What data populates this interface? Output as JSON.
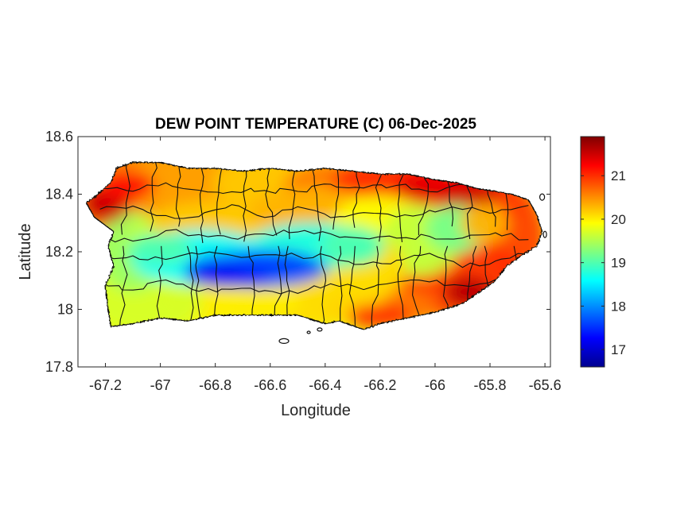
{
  "chart_data": {
    "type": "heatmap",
    "title": "DEW POINT TEMPERATURE (C) 06-Dec-2025",
    "xlabel": "Longitude",
    "ylabel": "Latitude",
    "xlim": [
      -67.3,
      -65.58
    ],
    "ylim": [
      17.8,
      18.6
    ],
    "xticks": [
      -67.2,
      -67,
      -66.8,
      -66.6,
      -66.4,
      -66.2,
      -66,
      -65.8,
      -65.6
    ],
    "xtick_labels": [
      "-67.2",
      "-67",
      "-66.8",
      "-66.6",
      "-66.4",
      "-66.2",
      "-66",
      "-65.8",
      "-65.6"
    ],
    "yticks": [
      17.8,
      18,
      18.2,
      18.4,
      18.6
    ],
    "ytick_labels": [
      "17.8",
      "18",
      "18.2",
      "18.4",
      "18.6"
    ],
    "colorbar": {
      "colormap": "jet",
      "range": [
        16.6,
        21.9
      ],
      "ticks": [
        17,
        18,
        19,
        20,
        21
      ],
      "tick_labels": [
        "17",
        "18",
        "19",
        "20",
        "21"
      ]
    },
    "grid": false,
    "region": "Puerto Rico",
    "features": [
      {
        "name": "west-coast-max",
        "lon": -67.22,
        "lat": 18.37,
        "value": 21.6
      },
      {
        "name": "northwest-warm",
        "lon": -67.05,
        "lat": 18.45,
        "value": 21.0
      },
      {
        "name": "north-central",
        "lon": -66.6,
        "lat": 18.44,
        "value": 20.5
      },
      {
        "name": "northeast-warm",
        "lon": -66.0,
        "lat": 18.42,
        "value": 21.2
      },
      {
        "name": "northeast-coast-max",
        "lon": -65.85,
        "lat": 18.4,
        "value": 21.5
      },
      {
        "name": "east-coast",
        "lon": -65.75,
        "lat": 18.2,
        "value": 21.2
      },
      {
        "name": "southeast-coast-max",
        "lon": -65.9,
        "lat": 18.05,
        "value": 21.6
      },
      {
        "name": "south-coast",
        "lon": -66.2,
        "lat": 17.98,
        "value": 20.7
      },
      {
        "name": "central-minimum",
        "lon": -66.75,
        "lat": 18.13,
        "value": 16.8
      },
      {
        "name": "central-cool-band",
        "lon": -66.5,
        "lat": 18.18,
        "value": 17.6
      },
      {
        "name": "central-east-cool",
        "lon": -66.35,
        "lat": 18.21,
        "value": 18.3
      },
      {
        "name": "southwest-mild",
        "lon": -67.05,
        "lat": 18.05,
        "value": 19.8
      },
      {
        "name": "west-interior",
        "lon": -67.1,
        "lat": 18.22,
        "value": 19.2
      },
      {
        "name": "east-interior",
        "lon": -65.95,
        "lat": 18.3,
        "value": 19.0
      }
    ]
  }
}
